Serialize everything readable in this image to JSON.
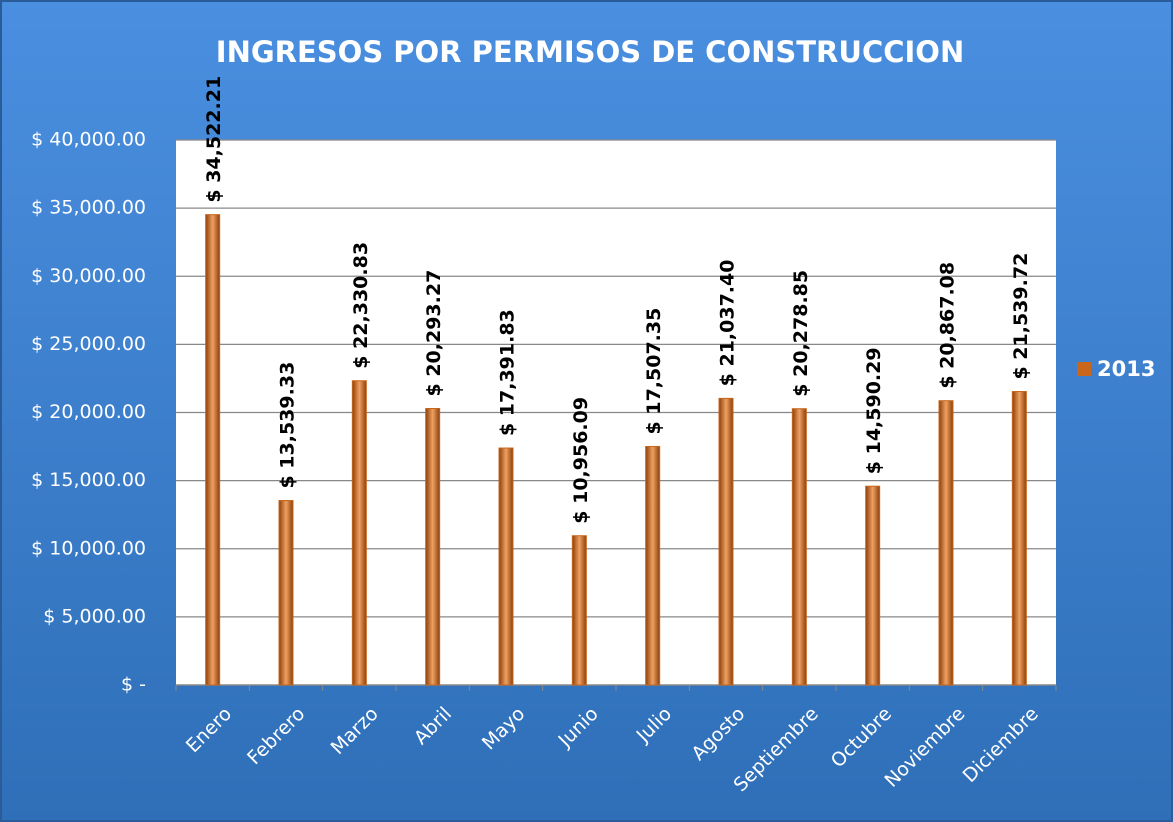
{
  "chart_data": {
    "type": "bar",
    "title": "INGRESOS POR PERMISOS DE CONSTRUCCION",
    "categories": [
      "Enero",
      "Febrero",
      "Marzo",
      "Abril",
      "Mayo",
      "Junio",
      "Julio",
      "Agosto",
      "Septiembre",
      "Octubre",
      "Noviembre",
      "Diciembre"
    ],
    "series": [
      {
        "name": "2013",
        "color": "#c8661c",
        "values": [
          34522.21,
          13539.33,
          22330.83,
          20293.27,
          17391.83,
          10956.09,
          17507.35,
          21037.4,
          20278.85,
          14590.29,
          20867.08,
          21539.72
        ],
        "value_labels": [
          "$ 34,522.21",
          "$ 13,539.33",
          "$ 22,330.83",
          "$ 20,293.27",
          "$ 17,391.83",
          "$ 10,956.09",
          "$ 17,507.35",
          "$ 21,037.40",
          "$ 20,278.85",
          "$ 14,590.29",
          "$ 20,867.08",
          "$ 21,539.72"
        ]
      }
    ],
    "ylim": [
      0,
      40000
    ],
    "yticks": [
      {
        "value": 0,
        "label": "$ -"
      },
      {
        "value": 5000,
        "label": "$ 5,000.00"
      },
      {
        "value": 10000,
        "label": "$ 10,000.00"
      },
      {
        "value": 15000,
        "label": "$ 15,000.00"
      },
      {
        "value": 20000,
        "label": "$ 20,000.00"
      },
      {
        "value": 25000,
        "label": "$ 25,000.00"
      },
      {
        "value": 30000,
        "label": "$ 30,000.00"
      },
      {
        "value": 35000,
        "label": "$ 35,000.00"
      },
      {
        "value": 40000,
        "label": "$ 40,000.00"
      }
    ],
    "grid": true,
    "legend": "right"
  }
}
